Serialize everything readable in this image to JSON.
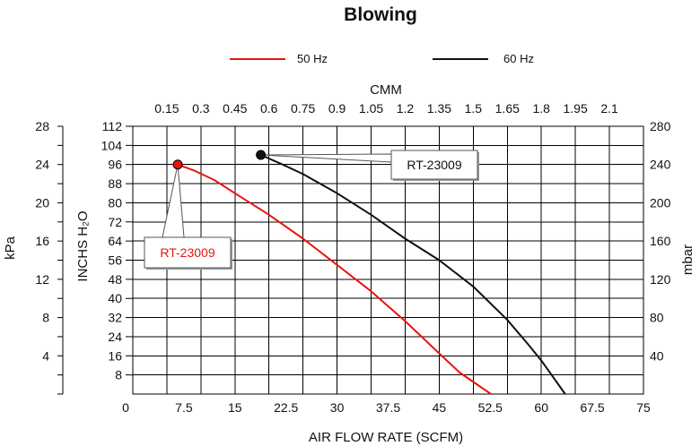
{
  "chart_data": {
    "type": "line",
    "title": "Blowing",
    "xlabel": "AIR FLOW RATE (SCFM)",
    "x2label": "CMM",
    "ylabel": "INCHS H₂O",
    "y2label_left": "kPa",
    "y2label_right": "mbar",
    "xlim": [
      0,
      75
    ],
    "ylim": [
      0,
      112
    ],
    "grid": true,
    "legend_position": "top",
    "x_ticks": [
      "0",
      "7.5",
      "15",
      "22.5",
      "30",
      "37.5",
      "45",
      "52.5",
      "60",
      "67.5",
      "75"
    ],
    "x_top_ticks": [
      "0.15",
      "0.3",
      "0.45",
      "0.6",
      "0.75",
      "0.9",
      "1.05",
      "1.2",
      "1.35",
      "1.5",
      "1.65",
      "1.8",
      "1.95",
      "2.1"
    ],
    "y_ticks": [
      "8",
      "16",
      "24",
      "32",
      "40",
      "48",
      "56",
      "64",
      "72",
      "80",
      "88",
      "96",
      "104",
      "112"
    ],
    "kpa_ticks": [
      "4",
      "8",
      "12",
      "16",
      "20",
      "24",
      "28"
    ],
    "mbar_ticks": [
      "40",
      "80",
      "120",
      "160",
      "200",
      "240",
      "280"
    ],
    "series": [
      {
        "name": "50 Hz",
        "color": "#e8140c",
        "x": [
          6.6,
          9,
          12,
          15,
          20,
          25,
          30,
          35,
          40,
          45,
          48,
          52.6
        ],
        "y": [
          96,
          93.5,
          89.5,
          84,
          75,
          65,
          54,
          43,
          30.5,
          17,
          9,
          0
        ]
      },
      {
        "name": "60 Hz",
        "color": "#111111",
        "x": [
          18.8,
          22,
          25,
          30,
          35,
          40,
          45,
          50,
          55,
          58,
          60,
          63.5
        ],
        "y": [
          100,
          96,
          92,
          84,
          75,
          65,
          56,
          45,
          31,
          21,
          14,
          0
        ]
      }
    ],
    "annotations": [
      {
        "label": "RT-23009",
        "series": "50 Hz",
        "color": "#e8140c",
        "x": 6.6,
        "y": 96
      },
      {
        "label": "RT-23009",
        "series": "60 Hz",
        "color": "#111111",
        "x": 18.8,
        "y": 100
      }
    ]
  }
}
